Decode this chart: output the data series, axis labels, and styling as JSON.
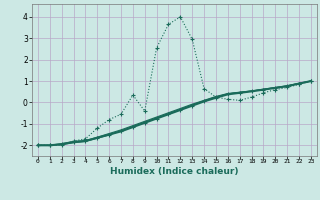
{
  "xlabel": "Humidex (Indice chaleur)",
  "ylabel": "",
  "xlim": [
    -0.5,
    23.5
  ],
  "ylim": [
    -2.5,
    4.6
  ],
  "xticks": [
    0,
    1,
    2,
    3,
    4,
    5,
    6,
    7,
    8,
    9,
    10,
    11,
    12,
    13,
    14,
    15,
    16,
    17,
    18,
    19,
    20,
    21,
    22,
    23
  ],
  "yticks": [
    -2,
    -1,
    0,
    1,
    2,
    3,
    4
  ],
  "bg_color": "#cce8e4",
  "line_color": "#1a6b5a",
  "grid_color": "#b8a8c8",
  "line1_x": [
    0,
    1,
    2,
    3,
    4,
    5,
    6,
    7,
    8,
    9,
    10,
    11,
    12,
    13,
    14,
    15,
    16,
    17,
    18,
    19,
    20,
    21,
    22,
    23
  ],
  "line1_y": [
    -2,
    -2,
    -2,
    -1.8,
    -1.7,
    -1.2,
    -0.8,
    -0.55,
    0.35,
    -0.4,
    2.55,
    3.65,
    4.0,
    2.95,
    0.65,
    0.25,
    0.15,
    0.1,
    0.25,
    0.45,
    0.6,
    0.7,
    0.85,
    1.0
  ],
  "line2_x": [
    0,
    1,
    2,
    3,
    4,
    5,
    6,
    7,
    8,
    9,
    10,
    11,
    12,
    13,
    14,
    15,
    16,
    17,
    18,
    19,
    20,
    21,
    22,
    23
  ],
  "line2_y": [
    -2,
    -2,
    -1.95,
    -1.85,
    -1.8,
    -1.65,
    -1.5,
    -1.35,
    -1.15,
    -0.95,
    -0.75,
    -0.55,
    -0.35,
    -0.15,
    0.05,
    0.22,
    0.38,
    0.45,
    0.52,
    0.6,
    0.68,
    0.76,
    0.88,
    1.0
  ],
  "line3_x": [
    0,
    1,
    2,
    3,
    4,
    5,
    6,
    7,
    8,
    9,
    10,
    11,
    12,
    13,
    14,
    15,
    16,
    17,
    18,
    19,
    20,
    21,
    22,
    23
  ],
  "line3_y": [
    -2,
    -2,
    -1.92,
    -1.82,
    -1.78,
    -1.62,
    -1.45,
    -1.28,
    -1.08,
    -0.88,
    -0.68,
    -0.48,
    -0.28,
    -0.08,
    0.1,
    0.28,
    0.42,
    0.48,
    0.54,
    0.62,
    0.7,
    0.78,
    0.9,
    1.0
  ],
  "line4_x": [
    0,
    1,
    2,
    3,
    4,
    5,
    6,
    7,
    8,
    9,
    10,
    11,
    12,
    13,
    14,
    15,
    16,
    17,
    18,
    19,
    20,
    21,
    22,
    23
  ],
  "line4_y": [
    -2,
    -2,
    -1.97,
    -1.88,
    -1.82,
    -1.67,
    -1.52,
    -1.32,
    -1.12,
    -0.92,
    -0.72,
    -0.52,
    -0.32,
    -0.12,
    0.08,
    0.26,
    0.4,
    0.47,
    0.53,
    0.61,
    0.69,
    0.77,
    0.89,
    1.0
  ]
}
